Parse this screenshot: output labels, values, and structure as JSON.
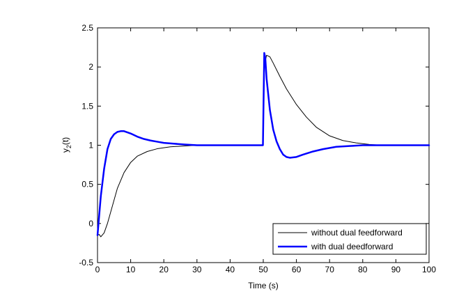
{
  "chart_data": {
    "type": "line",
    "title": "",
    "xlabel": "Time (s)",
    "ylabel": "y2(t)",
    "ylabel_main": "y",
    "ylabel_sub": "2",
    "ylabel_rest": "(t)",
    "xlim": [
      0,
      100
    ],
    "ylim": [
      -0.5,
      2.5
    ],
    "xticks": [
      0,
      10,
      20,
      30,
      40,
      50,
      60,
      70,
      80,
      90,
      100
    ],
    "yticks": [
      -0.5,
      0,
      0.5,
      1,
      1.5,
      2,
      2.5
    ],
    "grid": false,
    "legend_position": "bottom-right",
    "series": [
      {
        "name": "without dual feedforward",
        "color": "#000000",
        "line_width": 1,
        "points": [
          [
            0,
            -0.15
          ],
          [
            0.5,
            -0.14
          ],
          [
            1,
            -0.17
          ],
          [
            2,
            -0.12
          ],
          [
            3,
            0.0
          ],
          [
            4,
            0.15
          ],
          [
            5,
            0.3
          ],
          [
            6,
            0.45
          ],
          [
            7,
            0.55
          ],
          [
            8,
            0.65
          ],
          [
            10,
            0.78
          ],
          [
            12,
            0.86
          ],
          [
            15,
            0.92
          ],
          [
            18,
            0.955
          ],
          [
            22,
            0.98
          ],
          [
            26,
            0.99
          ],
          [
            30,
            1.0
          ],
          [
            40,
            1.0
          ],
          [
            49.9,
            1.0
          ],
          [
            50,
            1.3
          ],
          [
            50.2,
            2.0
          ],
          [
            51,
            2.15
          ],
          [
            52,
            2.13
          ],
          [
            53,
            2.05
          ],
          [
            55,
            1.88
          ],
          [
            57,
            1.72
          ],
          [
            60,
            1.52
          ],
          [
            63,
            1.36
          ],
          [
            66,
            1.23
          ],
          [
            70,
            1.12
          ],
          [
            74,
            1.06
          ],
          [
            78,
            1.03
          ],
          [
            82,
            1.01
          ],
          [
            86,
            1.0
          ],
          [
            100,
            1.0
          ]
        ]
      },
      {
        "name": "with dual deedforward",
        "color": "#0000ff",
        "line_width": 2.5,
        "points": [
          [
            0,
            -0.15
          ],
          [
            0.5,
            0.1
          ],
          [
            1,
            0.35
          ],
          [
            2,
            0.7
          ],
          [
            3,
            0.95
          ],
          [
            4,
            1.08
          ],
          [
            5,
            1.14
          ],
          [
            6,
            1.17
          ],
          [
            7,
            1.18
          ],
          [
            8,
            1.18
          ],
          [
            10,
            1.15
          ],
          [
            12,
            1.11
          ],
          [
            14,
            1.08
          ],
          [
            16,
            1.06
          ],
          [
            18,
            1.045
          ],
          [
            20,
            1.03
          ],
          [
            23,
            1.02
          ],
          [
            26,
            1.01
          ],
          [
            30,
            1.0
          ],
          [
            40,
            1.0
          ],
          [
            49.9,
            1.0
          ],
          [
            50,
            1.3
          ],
          [
            50.3,
            2.18
          ],
          [
            50.6,
            2.12
          ],
          [
            51,
            1.85
          ],
          [
            52,
            1.45
          ],
          [
            53,
            1.2
          ],
          [
            54,
            1.05
          ],
          [
            55,
            0.95
          ],
          [
            56,
            0.88
          ],
          [
            57,
            0.85
          ],
          [
            58,
            0.84
          ],
          [
            60,
            0.85
          ],
          [
            62,
            0.88
          ],
          [
            65,
            0.92
          ],
          [
            68,
            0.95
          ],
          [
            72,
            0.98
          ],
          [
            76,
            0.99
          ],
          [
            80,
            1.0
          ],
          [
            100,
            1.0
          ]
        ]
      }
    ]
  }
}
